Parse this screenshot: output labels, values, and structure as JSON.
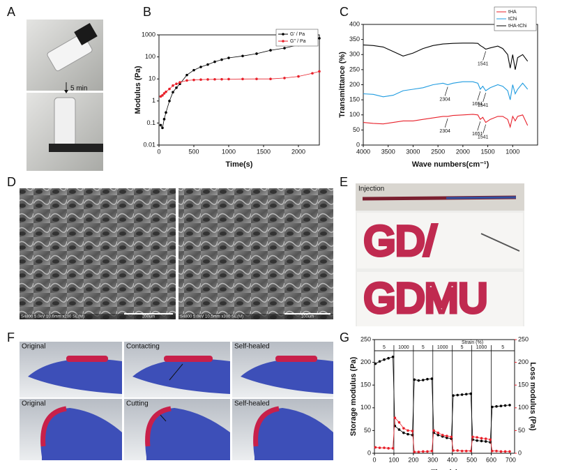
{
  "panel_labels": [
    "A",
    "B",
    "C",
    "D",
    "E",
    "F",
    "G"
  ],
  "panel_a": {
    "caption": "5 min"
  },
  "panel_d": {
    "images": [
      {
        "info": "S4800 5.0kV 10.6mm x200 SE(M)",
        "scale": "200um"
      },
      {
        "info": "S4800 5.0kV 10.5mm x300 SE(M)",
        "scale": "100um"
      }
    ]
  },
  "panel_e": {
    "caption": "Injection",
    "writing": [
      "GD/",
      "GDMU"
    ]
  },
  "panel_f": {
    "captions": [
      "Original",
      "Contacting",
      "Self-healed",
      "Original",
      "Cutting",
      "Self-healed"
    ]
  },
  "chart_data": [
    {
      "type": "line",
      "xlabel": "Time(s)",
      "ylabel": "Modulus (Pa)",
      "log_y": true,
      "markers": true,
      "legend": "upper-right",
      "xlim": [
        0,
        2300
      ],
      "xticks": [
        0,
        500,
        1000,
        1500,
        2000
      ],
      "ylim": [
        0.01,
        1000
      ],
      "yticks": [
        0.01,
        0.1,
        1,
        10,
        100,
        1000
      ],
      "x": [
        25,
        50,
        75,
        100,
        150,
        200,
        250,
        300,
        400,
        500,
        600,
        700,
        800,
        900,
        1000,
        1200,
        1400,
        1600,
        1800,
        2000,
        2200,
        2300
      ],
      "series": [
        {
          "name": "G' / Pa",
          "color": "#000000",
          "values": [
            0.08,
            0.06,
            0.15,
            0.3,
            1,
            2.5,
            4,
            6,
            15,
            25,
            35,
            45,
            60,
            75,
            90,
            110,
            140,
            200,
            250,
            350,
            550,
            700
          ]
        },
        {
          "name": "G'' / Pa",
          "color": "#e8202a",
          "values": [
            1.6,
            1.8,
            2.2,
            2.6,
            3.5,
            5,
            6,
            7,
            8.5,
            9,
            9.3,
            9.5,
            9.6,
            9.7,
            9.8,
            9.9,
            10,
            10,
            11,
            13,
            18,
            22
          ]
        }
      ]
    },
    {
      "type": "line",
      "xlabel": "Wave numbers(cm⁻¹)",
      "ylabel": "Transmittance (%)",
      "legend": "upper-right",
      "xlim": [
        4000,
        500
      ],
      "xticks": [
        4000,
        3500,
        3000,
        2500,
        2000,
        1500,
        1000
      ],
      "ylim": [
        0,
        400
      ],
      "yticks": [
        0,
        50,
        100,
        150,
        200,
        250,
        300,
        350,
        400
      ],
      "x": [
        4000,
        3800,
        3600,
        3400,
        3200,
        3000,
        2800,
        2600,
        2400,
        2304,
        2200,
        2000,
        1800,
        1700,
        1651,
        1600,
        1541,
        1450,
        1300,
        1200,
        1100,
        1050,
        1000,
        950,
        900,
        800,
        700
      ],
      "series": [
        {
          "name": "tHA",
          "color": "#e8202a",
          "values": [
            75,
            72,
            70,
            75,
            80,
            80,
            85,
            90,
            95,
            95,
            98,
            100,
            102,
            100,
            85,
            92,
            75,
            85,
            95,
            95,
            85,
            60,
            95,
            80,
            95,
            100,
            65
          ]
        },
        {
          "name": "tChi",
          "color": "#1e9be0",
          "values": [
            170,
            168,
            160,
            165,
            180,
            185,
            190,
            200,
            205,
            200,
            205,
            210,
            210,
            205,
            185,
            195,
            180,
            190,
            200,
            195,
            180,
            150,
            200,
            170,
            185,
            205,
            185
          ]
        },
        {
          "name": "tHA-tChi",
          "color": "#000000",
          "values": [
            332,
            330,
            325,
            310,
            295,
            305,
            320,
            330,
            335,
            336,
            337,
            338,
            338,
            337,
            330,
            325,
            318,
            322,
            328,
            320,
            300,
            255,
            300,
            250,
            290,
            300,
            278
          ]
        }
      ],
      "annotations": [
        {
          "x": 1541,
          "series": 2
        },
        {
          "x": 2304,
          "series": 1
        },
        {
          "x": 1651,
          "series": 1
        },
        {
          "x": 1541,
          "series": 1
        },
        {
          "x": 2304,
          "series": 0
        },
        {
          "x": 1651,
          "series": 0
        },
        {
          "x": 1541,
          "series": 0
        }
      ]
    },
    {
      "type": "line",
      "xlabel": "Time(s)",
      "ylabel": "Storage modulus (Pa)",
      "y2label": "Loss modulus (Pa)",
      "markers": true,
      "xlim": [
        0,
        720
      ],
      "xticks": [
        0,
        100,
        200,
        300,
        400,
        500,
        600,
        700
      ],
      "ylim": [
        0,
        250
      ],
      "yticks": [
        0,
        50,
        100,
        150,
        200,
        250
      ],
      "y2lim": [
        0,
        250
      ],
      "y2ticks": [
        0,
        50,
        100,
        150,
        200,
        250
      ],
      "strain_title": "Strain (%)",
      "strain": [
        5,
        1000,
        5,
        1000,
        5,
        1000,
        5
      ],
      "phase_boundaries": [
        100,
        200,
        300,
        400,
        500,
        600
      ],
      "x": [
        5,
        27,
        50,
        72,
        95,
        105,
        127,
        150,
        172,
        195,
        205,
        227,
        250,
        272,
        295,
        305,
        327,
        350,
        372,
        395,
        405,
        427,
        450,
        472,
        495,
        505,
        527,
        550,
        572,
        595,
        605,
        627,
        650,
        672,
        695
      ],
      "series": [
        {
          "name": "Storage modulus",
          "color": "#000000",
          "values": [
            197,
            202,
            206,
            209,
            212,
            60,
            52,
            45,
            42,
            40,
            162,
            160,
            161,
            163,
            164,
            45,
            40,
            37,
            34,
            32,
            127,
            128,
            129,
            130,
            131,
            30,
            28,
            27,
            26,
            24,
            102,
            103,
            104,
            105,
            106
          ]
        },
        {
          "name": "Loss modulus",
          "color": "#e8202a",
          "axis": "y2",
          "values": [
            13,
            12,
            12,
            11,
            11,
            78,
            68,
            55,
            50,
            49,
            3,
            3,
            4,
            4,
            5,
            50,
            45,
            40,
            38,
            36,
            6,
            6,
            5,
            5,
            5,
            36,
            35,
            33,
            32,
            30,
            5,
            5,
            4,
            4,
            4
          ]
        }
      ]
    }
  ]
}
